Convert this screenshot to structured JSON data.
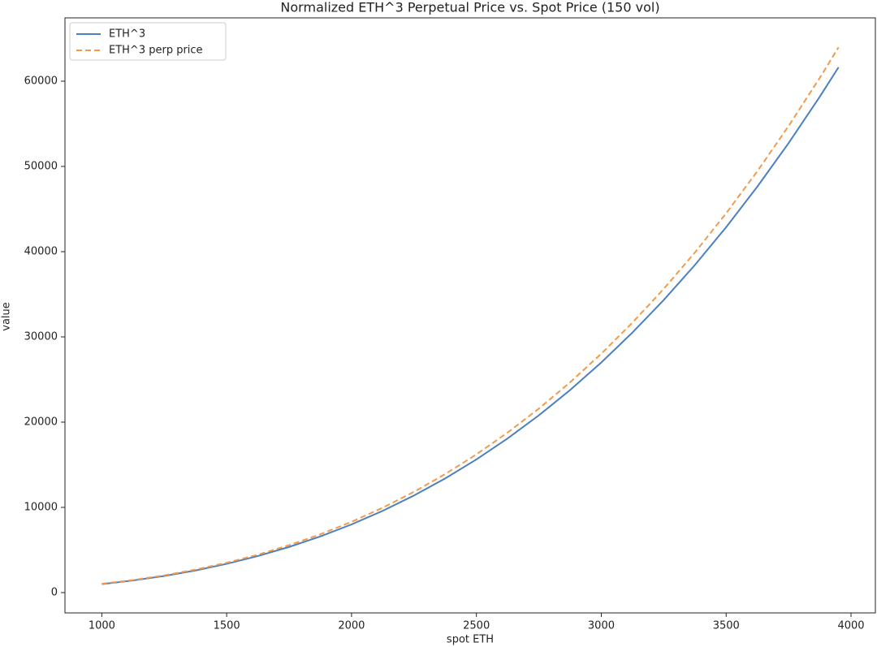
{
  "chart_data": {
    "type": "line",
    "title": "Normalized ETH^3 Perpetual Price vs. Spot Price (150 vol)",
    "x_label": "spot ETH",
    "y_label": "value",
    "x": [
      1000,
      1125,
      1250,
      1375,
      1500,
      1625,
      1750,
      1875,
      2000,
      2125,
      2250,
      2375,
      2500,
      2625,
      2750,
      2875,
      3000,
      3125,
      3250,
      3375,
      3500,
      3625,
      3750,
      3875,
      3950
    ],
    "series": [
      {
        "name": "ETH^3",
        "color": "#4c7fbf",
        "dash": "solid",
        "values": [
          1000,
          1424,
          1953,
          2600,
          3375,
          4291,
          5359,
          6592,
          8000,
          9596,
          11391,
          13396,
          15625,
          18088,
          20797,
          23764,
          27000,
          30518,
          34328,
          38443,
          42875,
          47634,
          52734,
          58185,
          61630
        ]
      },
      {
        "name": "ETH^3 perp price",
        "color": "#f39a4a",
        "dash": "dashed",
        "values": [
          1038,
          1478,
          2027,
          2699,
          3503,
          4454,
          5563,
          6842,
          8304,
          9961,
          11824,
          13905,
          16219,
          18775,
          21587,
          24667,
          28026,
          31678,
          35633,
          39904,
          44504,
          49444,
          54738,
          60396,
          63972
        ]
      }
    ],
    "xlim": [
      852.5,
      4097.5
    ],
    "ylim": [
      -2380,
      67430
    ],
    "xticks": [
      1000,
      1500,
      2000,
      2500,
      3000,
      3500,
      4000
    ],
    "yticks": [
      0,
      10000,
      20000,
      30000,
      40000,
      50000,
      60000
    ],
    "legend": "upper left",
    "grid": false
  }
}
